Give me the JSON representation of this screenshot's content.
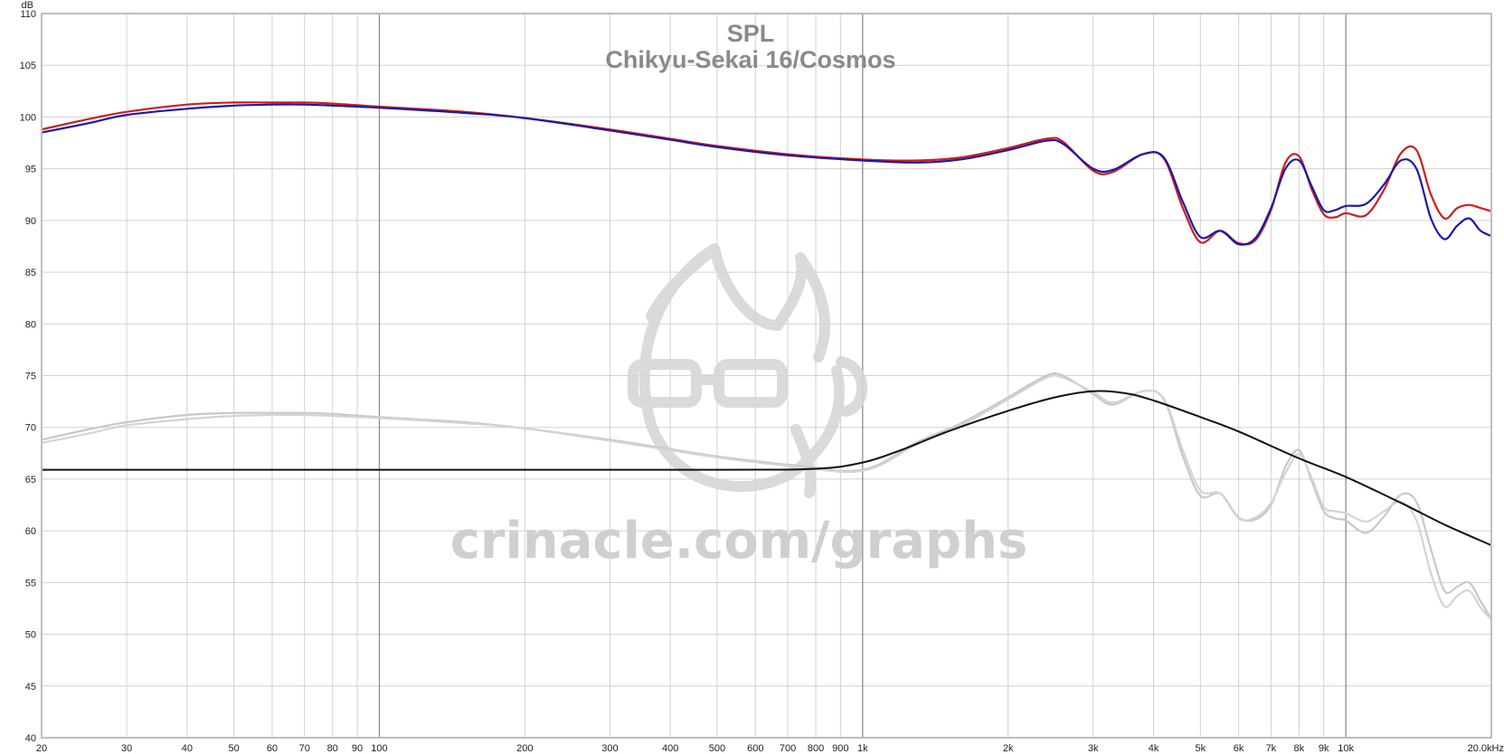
{
  "chart_data": {
    "type": "line",
    "title": "SPL",
    "subtitle": "Chikyu-Sekai 16/Cosmos",
    "ylabel": "dB",
    "xlabel": "",
    "xscale": "log",
    "xlim": [
      20,
      20000
    ],
    "ylim": [
      40,
      110
    ],
    "grid": true,
    "legend": "none",
    "watermark": "crinacle.com/graphs",
    "y_ticks": [
      40,
      45,
      50,
      55,
      60,
      65,
      70,
      75,
      80,
      85,
      90,
      95,
      100,
      105,
      110
    ],
    "x_ticks": [
      {
        "v": 20,
        "label": "20"
      },
      {
        "v": 30,
        "label": "30"
      },
      {
        "v": 40,
        "label": "40"
      },
      {
        "v": 50,
        "label": "50"
      },
      {
        "v": 60,
        "label": "60"
      },
      {
        "v": 70,
        "label": "70"
      },
      {
        "v": 80,
        "label": "80"
      },
      {
        "v": 90,
        "label": "90"
      },
      {
        "v": 100,
        "label": "100"
      },
      {
        "v": 200,
        "label": "200"
      },
      {
        "v": 300,
        "label": "300"
      },
      {
        "v": 400,
        "label": "400"
      },
      {
        "v": 500,
        "label": "500"
      },
      {
        "v": 600,
        "label": "600"
      },
      {
        "v": 700,
        "label": "700"
      },
      {
        "v": 800,
        "label": "800"
      },
      {
        "v": 900,
        "label": "900"
      },
      {
        "v": 1000,
        "label": "1k"
      },
      {
        "v": 2000,
        "label": "2k"
      },
      {
        "v": 3000,
        "label": "3k"
      },
      {
        "v": 4000,
        "label": "4k"
      },
      {
        "v": 5000,
        "label": "5k"
      },
      {
        "v": 6000,
        "label": "6k"
      },
      {
        "v": 7000,
        "label": "7k"
      },
      {
        "v": 8000,
        "label": "8k"
      },
      {
        "v": 9000,
        "label": "9k"
      },
      {
        "v": 10000,
        "label": "10k"
      },
      {
        "v": 20000,
        "label": "20.0kHz"
      }
    ],
    "series": [
      {
        "color": "#d01c1c",
        "x": [
          20,
          25,
          30,
          40,
          50,
          60,
          70,
          80,
          100,
          150,
          200,
          300,
          400,
          500,
          700,
          1000,
          1300,
          1600,
          2000,
          2400,
          2600,
          3000,
          3300,
          3800,
          4200,
          4600,
          5000,
          5500,
          6000,
          6500,
          7000,
          7500,
          8000,
          8500,
          9000,
          9500,
          10000,
          11000,
          12000,
          13000,
          14000,
          15000,
          16000,
          17000,
          18000,
          19000,
          20000
        ],
        "y": [
          98.8,
          99.8,
          100.5,
          101.2,
          101.4,
          101.4,
          101.4,
          101.3,
          101.0,
          100.5,
          99.9,
          98.8,
          97.9,
          97.2,
          96.4,
          95.9,
          95.8,
          96.1,
          97.0,
          97.9,
          97.6,
          94.8,
          94.7,
          96.4,
          96.0,
          91.2,
          87.9,
          89.0,
          87.8,
          88.1,
          91.0,
          95.6,
          96.2,
          93.0,
          90.6,
          90.3,
          90.7,
          90.5,
          93.0,
          96.5,
          96.8,
          92.5,
          90.2,
          91.2,
          91.5,
          91.2,
          90.9
        ]
      },
      {
        "color": "#1a1aa8",
        "x": [
          20,
          25,
          30,
          40,
          50,
          60,
          70,
          80,
          100,
          150,
          200,
          300,
          400,
          500,
          700,
          1000,
          1300,
          1600,
          2000,
          2400,
          2600,
          3000,
          3300,
          3800,
          4200,
          4600,
          5000,
          5500,
          6000,
          6500,
          7000,
          7500,
          8000,
          8500,
          9000,
          9500,
          10000,
          11000,
          12000,
          13000,
          14000,
          15000,
          16000,
          17000,
          18000,
          19000,
          20000
        ],
        "y": [
          98.5,
          99.4,
          100.2,
          100.8,
          101.1,
          101.2,
          101.2,
          101.1,
          100.9,
          100.4,
          99.9,
          98.7,
          97.8,
          97.1,
          96.3,
          95.8,
          95.6,
          95.9,
          96.8,
          97.7,
          97.4,
          95.0,
          94.9,
          96.4,
          96.1,
          91.8,
          88.4,
          89.0,
          87.7,
          88.3,
          91.2,
          95.0,
          95.8,
          93.3,
          91.0,
          91.0,
          91.4,
          91.6,
          93.5,
          95.8,
          95.0,
          90.2,
          88.2,
          89.5,
          90.2,
          89.0,
          88.5
        ]
      },
      {
        "color": "#c8c8c8",
        "x": [
          20,
          25,
          30,
          40,
          50,
          60,
          70,
          80,
          100,
          150,
          200,
          300,
          400,
          500,
          700,
          1000,
          1300,
          1600,
          2000,
          2400,
          2600,
          3000,
          3300,
          3800,
          4200,
          4600,
          5000,
          5500,
          6000,
          6500,
          7000,
          7500,
          8000,
          8500,
          9000,
          9500,
          10000,
          11000,
          12000,
          13000,
          14000,
          15000,
          16000,
          17000,
          18000,
          19000,
          20000
        ],
        "y": [
          68.8,
          69.8,
          70.5,
          71.2,
          71.4,
          71.4,
          71.4,
          71.3,
          71.0,
          70.5,
          69.9,
          68.8,
          67.9,
          67.2,
          66.4,
          65.9,
          68.6,
          70.4,
          72.9,
          75.0,
          75.0,
          73.2,
          72.2,
          73.5,
          72.7,
          67.2,
          63.4,
          63.6,
          61.3,
          61.1,
          62.5,
          66.2,
          67.8,
          64.8,
          61.9,
          61.2,
          61.0,
          59.8,
          61.4,
          63.5,
          62.8,
          58.2,
          54.2,
          54.6,
          55.0,
          53.2,
          51.5
        ]
      },
      {
        "color": "#d4d4d4",
        "x": [
          20,
          25,
          30,
          40,
          50,
          60,
          70,
          80,
          100,
          150,
          200,
          300,
          400,
          500,
          700,
          1000,
          1300,
          1600,
          2000,
          2400,
          2600,
          3000,
          3300,
          3800,
          4200,
          4600,
          5000,
          5500,
          6000,
          6500,
          7000,
          7500,
          8000,
          8500,
          9000,
          9500,
          10000,
          11000,
          12000,
          13000,
          14000,
          15000,
          16000,
          17000,
          18000,
          19000,
          20000
        ],
        "y": [
          68.5,
          69.4,
          70.2,
          70.8,
          71.1,
          71.2,
          71.2,
          71.1,
          70.9,
          70.4,
          69.9,
          68.7,
          67.8,
          67.1,
          66.3,
          65.8,
          68.4,
          70.2,
          72.7,
          74.8,
          74.8,
          73.4,
          72.4,
          73.5,
          72.8,
          67.8,
          63.9,
          63.6,
          61.2,
          61.3,
          62.7,
          65.6,
          67.4,
          65.1,
          62.3,
          61.9,
          61.7,
          60.9,
          61.9,
          62.8,
          61.0,
          55.9,
          52.7,
          53.7,
          54.2,
          52.6,
          51.4
        ]
      },
      {
        "color": "#111111",
        "x": [
          20,
          100,
          500,
          800,
          1000,
          1200,
          1500,
          2000,
          2500,
          3000,
          3500,
          4000,
          5000,
          6000,
          8000,
          10000,
          13000,
          16000,
          20000
        ],
        "y": [
          65.9,
          65.9,
          65.9,
          66.0,
          66.6,
          67.8,
          69.6,
          71.6,
          72.9,
          73.5,
          73.3,
          72.6,
          71.0,
          69.6,
          67.0,
          65.2,
          62.7,
          60.6,
          58.6
        ]
      }
    ]
  }
}
